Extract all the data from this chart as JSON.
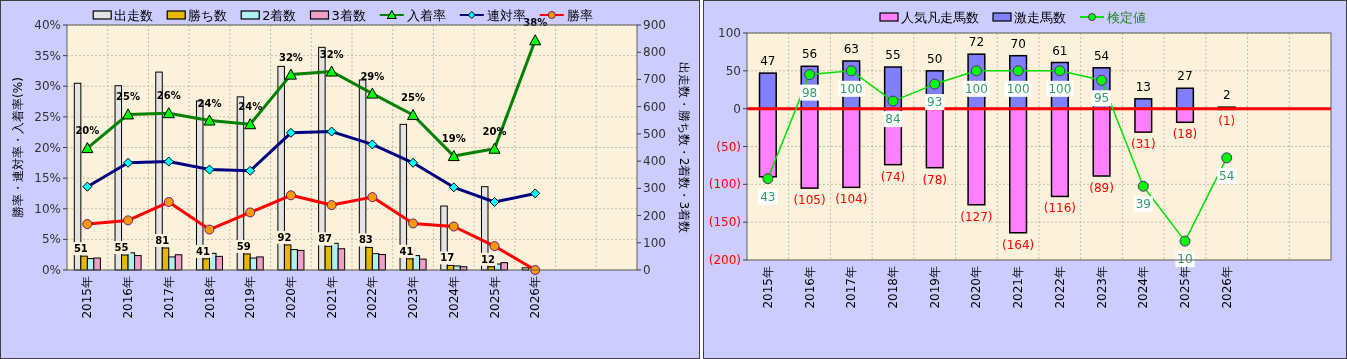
{
  "chart_data": [
    {
      "type": "bar",
      "categories": [
        "2015年",
        "2016年",
        "2017年",
        "2018年",
        "2019年",
        "2020年",
        "2021年",
        "2022年",
        "2023年",
        "2024年",
        "2025年",
        "2026年",
        null,
        null
      ],
      "ylabel": "勝率・連対率・入着率(%)",
      "y2label": "出走数・勝ち数・2着数・3着数",
      "ylim": [
        0,
        40
      ],
      "yticks": [
        {
          "value": 0,
          "label": "0%"
        },
        {
          "value": 5,
          "label": "5%"
        },
        {
          "value": 10,
          "label": "10%"
        },
        {
          "value": 15,
          "label": "15%"
        },
        {
          "value": 20,
          "label": "20%"
        },
        {
          "value": 25,
          "label": "25%"
        },
        {
          "value": 30,
          "label": "30%"
        },
        {
          "value": 35,
          "label": "35%"
        },
        {
          "value": 40,
          "label": "40%"
        }
      ],
      "y2lim": [
        0,
        900
      ],
      "y2ticks": [
        0,
        100,
        200,
        300,
        400,
        500,
        600,
        700,
        800,
        900
      ],
      "grid": true,
      "legend": "top",
      "series": [
        {
          "name": "出走数",
          "color": "#e4e4e4",
          "axis": "y2",
          "values": [
            686,
            677,
            727,
            621,
            636,
            748,
            818,
            698,
            535,
            235,
            306,
            8,
            null,
            null
          ]
        },
        {
          "name": "勝ち数",
          "color": "#e6b800",
          "axis": "y2",
          "values": [
            51,
            55,
            81,
            41,
            59,
            92,
            87,
            83,
            41,
            17,
            12,
            0,
            null,
            null
          ],
          "value_labels": [
            "51",
            "55",
            "81",
            "41",
            "59",
            "92",
            "87",
            "83",
            "41",
            "17",
            "12",
            null,
            null,
            null
          ]
        },
        {
          "name": "2着数",
          "color": "#b0f0f0",
          "axis": "y2",
          "values": [
            42,
            63,
            48,
            61,
            44,
            75,
            98,
            60,
            53,
            15,
            22,
            null,
            null,
            null
          ]
        },
        {
          "name": "3着数",
          "color": "#f0a0c8",
          "axis": "y2",
          "values": [
            44,
            53,
            56,
            50,
            48,
            72,
            78,
            57,
            40,
            12,
            27,
            null,
            null,
            null
          ]
        },
        {
          "name": "入着率",
          "type": "line",
          "color": "#008000",
          "marker": "triangle",
          "values": [
            19.9,
            25.4,
            25.6,
            24.4,
            23.8,
            31.9,
            32.4,
            28.8,
            25.3,
            18.6,
            19.8,
            37.5,
            null,
            null
          ],
          "value_labels": [
            "20%",
            "25%",
            "26%",
            "24%",
            "24%",
            "32%",
            "32%",
            "29%",
            "25%",
            "19%",
            "20%",
            "38%",
            null,
            null
          ]
        },
        {
          "name": "連対率",
          "type": "line",
          "color": "#000080",
          "marker": "diamond",
          "values": [
            13.6,
            17.5,
            17.7,
            16.4,
            16.2,
            22.4,
            22.6,
            20.5,
            17.5,
            13.5,
            11.1,
            12.5,
            null,
            null
          ]
        },
        {
          "name": "勝率",
          "type": "line",
          "color": "#ff0000",
          "marker": "circle",
          "values": [
            7.5,
            8.1,
            11.1,
            6.6,
            9.4,
            12.2,
            10.6,
            11.9,
            7.6,
            7.1,
            3.9,
            0,
            null,
            null
          ]
        }
      ]
    },
    {
      "type": "bar",
      "stacked": true,
      "categories": [
        "2015年",
        "2016年",
        "2017年",
        "2018年",
        "2019年",
        "2020年",
        "2021年",
        "2022年",
        "2023年",
        "2024年",
        "2025年",
        "2026年",
        null,
        null
      ],
      "ylim": [
        -200,
        100
      ],
      "yticks": [
        {
          "value": -200,
          "label": "(200)"
        },
        {
          "value": -150,
          "label": "(150)"
        },
        {
          "value": -100,
          "label": "(100)"
        },
        {
          "value": -50,
          "label": "(50)"
        },
        0,
        50,
        100
      ],
      "y2lim": [
        0,
        120
      ],
      "grid": true,
      "legend": "top",
      "ref_lines": [
        {
          "axis": "y",
          "value": 0,
          "color": "#ff0000"
        }
      ],
      "series": [
        {
          "name": "人気凡走馬数",
          "color": "#ff80ff",
          "values": [
            -90,
            -105,
            -104,
            -74,
            -78,
            -127,
            -164,
            -116,
            -89,
            -31,
            -18,
            -1,
            null,
            null
          ],
          "value_labels": [
            null,
            "(105)",
            "(104)",
            "(74)",
            "(78)",
            "(127)",
            "(164)",
            "(116)",
            "(89)",
            "(31)",
            "(18)",
            "(1)",
            null,
            null
          ]
        },
        {
          "name": "激走馬数",
          "color": "#8080ff",
          "values": [
            47,
            56,
            63,
            55,
            50,
            72,
            70,
            61,
            54,
            13,
            27,
            2,
            null,
            null
          ],
          "value_labels": [
            "47",
            "56",
            "63",
            "55",
            "50",
            "72",
            "70",
            "61",
            "54",
            "13",
            "27",
            "2",
            null,
            null
          ]
        },
        {
          "name": "検定値",
          "type": "line",
          "axis": "y2",
          "color": "#00e000",
          "marker": "circle",
          "values": [
            43,
            98,
            100,
            84,
            93,
            100,
            100,
            100,
            95,
            39,
            10,
            54,
            null,
            null
          ],
          "value_labels": [
            "43",
            "98",
            "100",
            "84",
            "93",
            "100",
            "100",
            "100",
            "95",
            "39",
            "10",
            "54",
            null,
            null
          ]
        }
      ]
    }
  ]
}
